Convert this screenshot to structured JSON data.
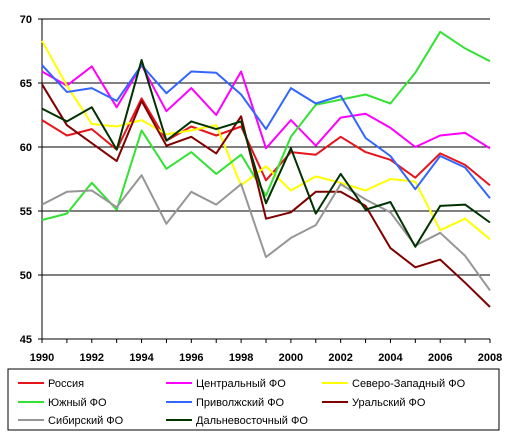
{
  "chart_data": {
    "type": "line",
    "title": "",
    "xlabel": "",
    "ylabel": "",
    "x": [
      1990,
      1991,
      1992,
      1993,
      1994,
      1995,
      1996,
      1997,
      1998,
      1999,
      2000,
      2001,
      2002,
      2003,
      2004,
      2005,
      2006,
      2007,
      2008
    ],
    "xlim": [
      1990,
      2008
    ],
    "ylim": [
      45,
      70
    ],
    "x_ticks": [
      "1990",
      "1992",
      "1994",
      "1996",
      "1998",
      "2000",
      "2002",
      "2004",
      "2006",
      "2008"
    ],
    "y_ticks": [
      "45",
      "50",
      "55",
      "60",
      "65",
      "70"
    ],
    "grid": "horizontal",
    "legend_position": "bottom",
    "series": [
      {
        "name": "Россия",
        "color": "#e8141c",
        "values": [
          62.1,
          60.9,
          61.4,
          59.8,
          63.8,
          60.5,
          61.6,
          60.9,
          61.6,
          57.4,
          59.6,
          59.4,
          60.8,
          59.6,
          59.0,
          57.6,
          59.5,
          58.6,
          57.0
        ]
      },
      {
        "name": "Центральный ФО",
        "color": "#ff00ff",
        "values": [
          65.9,
          64.8,
          66.3,
          63.1,
          66.4,
          62.8,
          64.6,
          62.5,
          65.9,
          59.9,
          62.1,
          60.1,
          62.3,
          62.6,
          61.5,
          60.0,
          60.9,
          61.1,
          59.9
        ]
      },
      {
        "name": "Северо-Западный ФО",
        "color": "#ffff00",
        "values": [
          68.3,
          64.8,
          61.8,
          61.6,
          62.1,
          61.0,
          61.3,
          61.7,
          57.0,
          58.5,
          56.6,
          57.7,
          57.2,
          56.6,
          57.5,
          57.3,
          53.5,
          54.4,
          52.8
        ]
      },
      {
        "name": "Южный ФО",
        "color": "#33e233",
        "values": [
          54.3,
          54.8,
          57.2,
          55.1,
          61.3,
          58.3,
          59.6,
          57.9,
          59.4,
          56.2,
          60.8,
          63.3,
          63.7,
          64.1,
          63.4,
          65.8,
          69.0,
          67.7,
          66.7
        ]
      },
      {
        "name": "Приволжский ФО",
        "color": "#3366ff",
        "values": [
          66.4,
          64.3,
          64.6,
          63.6,
          66.4,
          64.2,
          65.9,
          65.8,
          64.1,
          61.4,
          64.6,
          63.4,
          64.0,
          60.7,
          59.3,
          56.7,
          59.3,
          58.4,
          56.0
        ]
      },
      {
        "name": "Уральский ФО",
        "color": "#800000",
        "values": [
          64.9,
          61.7,
          60.3,
          58.9,
          63.6,
          60.1,
          60.8,
          59.5,
          62.4,
          54.4,
          54.9,
          56.5,
          56.5,
          55.4,
          52.1,
          50.6,
          51.2,
          49.4,
          47.5
        ]
      },
      {
        "name": "Сибирский ФО",
        "color": "#969696",
        "values": [
          55.5,
          56.5,
          56.6,
          55.3,
          57.8,
          54.0,
          56.5,
          55.5,
          57.1,
          51.4,
          52.9,
          53.9,
          57.1,
          55.9,
          54.9,
          52.3,
          53.3,
          51.5,
          48.8
        ]
      },
      {
        "name": "Дальневосточный ФО",
        "color": "#003300",
        "values": [
          63.0,
          62.0,
          63.1,
          59.8,
          66.8,
          60.5,
          62.0,
          61.4,
          62.0,
          55.6,
          59.9,
          54.8,
          57.9,
          55.1,
          55.7,
          52.2,
          55.4,
          55.5,
          54.1
        ]
      }
    ]
  }
}
